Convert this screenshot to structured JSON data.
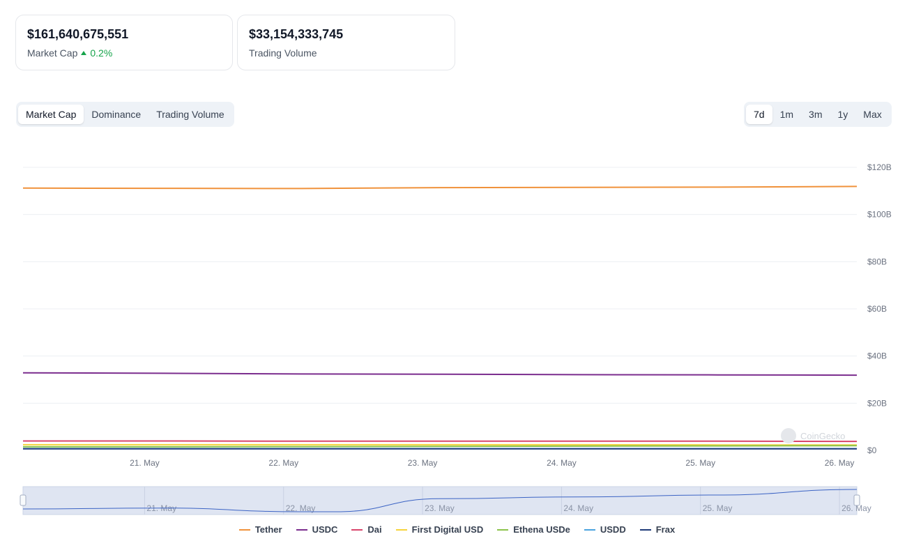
{
  "stats": {
    "market_cap": {
      "value": "$161,640,675,551",
      "label": "Market Cap",
      "change": "0.2%"
    },
    "trading_volume": {
      "value": "$33,154,333,745",
      "label": "Trading Volume"
    }
  },
  "tabs": {
    "metric": [
      {
        "label": "Market Cap",
        "active": true
      },
      {
        "label": "Dominance",
        "active": false
      },
      {
        "label": "Trading Volume",
        "active": false
      }
    ],
    "range": [
      {
        "label": "7d",
        "active": true
      },
      {
        "label": "1m",
        "active": false
      },
      {
        "label": "3m",
        "active": false
      },
      {
        "label": "1y",
        "active": false
      },
      {
        "label": "Max",
        "active": false
      }
    ]
  },
  "watermark": "CoinGecko",
  "colors": {
    "positive": "#16a34a",
    "grid": "#e5e7eb",
    "navigator_fill": "#dbe2f1",
    "navigator_line": "#3b63c4"
  },
  "chart_data": {
    "type": "line",
    "title": "",
    "xlabel": "",
    "ylabel": "",
    "y_axis_position": "right",
    "grid": true,
    "legend_placement": "bottom",
    "x_range": [
      "2024-05-20T03:00",
      "2024-05-26T03:00"
    ],
    "x_ticks": [
      "21. May",
      "22. May",
      "23. May",
      "24. May",
      "25. May",
      "26. May"
    ],
    "y_ticks": [
      "$0",
      "$20B",
      "$40B",
      "$60B",
      "$80B",
      "$100B",
      "$120B"
    ],
    "ylim": [
      0,
      120
    ],
    "y_unit": "billion USD",
    "series": [
      {
        "name": "Tether",
        "color": "#f0923b",
        "x": [
          "2024-05-20T03:00",
          "2024-05-21T03:00",
          "2024-05-22T03:00",
          "2024-05-23T03:00",
          "2024-05-24T03:00",
          "2024-05-25T03:00",
          "2024-05-26T03:00"
        ],
        "values": [
          111.2,
          111.1,
          111.0,
          111.4,
          111.5,
          111.6,
          111.9
        ]
      },
      {
        "name": "USDC",
        "color": "#7b2d8e",
        "x": [
          "2024-05-20T03:00",
          "2024-05-21T03:00",
          "2024-05-22T03:00",
          "2024-05-23T03:00",
          "2024-05-24T03:00",
          "2024-05-25T03:00",
          "2024-05-26T03:00"
        ],
        "values": [
          32.9,
          32.7,
          32.4,
          32.3,
          32.1,
          32.0,
          31.9
        ]
      },
      {
        "name": "Dai",
        "color": "#d9456b",
        "x": [
          "2024-05-20T03:00",
          "2024-05-21T03:00",
          "2024-05-22T03:00",
          "2024-05-23T03:00",
          "2024-05-24T03:00",
          "2024-05-25T03:00",
          "2024-05-26T03:00"
        ],
        "values": [
          4.0,
          4.0,
          3.9,
          3.9,
          3.9,
          3.9,
          3.8
        ]
      },
      {
        "name": "First Digital USD",
        "color": "#f6d33a",
        "x": [
          "2024-05-20T03:00",
          "2024-05-21T03:00",
          "2024-05-22T03:00",
          "2024-05-23T03:00",
          "2024-05-24T03:00",
          "2024-05-25T03:00",
          "2024-05-26T03:00"
        ],
        "values": [
          2.4,
          2.4,
          2.4,
          2.4,
          2.4,
          2.3,
          2.3
        ]
      },
      {
        "name": "Ethena USDe",
        "color": "#8bc34a",
        "x": [
          "2024-05-20T03:00",
          "2024-05-21T03:00",
          "2024-05-22T03:00",
          "2024-05-23T03:00",
          "2024-05-24T03:00",
          "2024-05-25T03:00",
          "2024-05-26T03:00"
        ],
        "values": [
          1.5,
          1.5,
          1.6,
          1.7,
          1.8,
          1.9,
          2.0
        ]
      },
      {
        "name": "USDD",
        "color": "#4aa3df",
        "x": [
          "2024-05-20T03:00",
          "2024-05-21T03:00",
          "2024-05-22T03:00",
          "2024-05-23T03:00",
          "2024-05-24T03:00",
          "2024-05-25T03:00",
          "2024-05-26T03:00"
        ],
        "values": [
          0.73,
          0.73,
          0.73,
          0.73,
          0.73,
          0.73,
          0.73
        ]
      },
      {
        "name": "Frax",
        "color": "#1e3a78",
        "x": [
          "2024-05-20T03:00",
          "2024-05-21T03:00",
          "2024-05-22T03:00",
          "2024-05-23T03:00",
          "2024-05-24T03:00",
          "2024-05-25T03:00",
          "2024-05-26T03:00"
        ],
        "values": [
          0.65,
          0.65,
          0.65,
          0.65,
          0.65,
          0.65,
          0.65
        ]
      }
    ],
    "navigator": {
      "x": [
        "2024-05-20T03:00",
        "2024-05-21T03:00",
        "2024-05-22T03:00",
        "2024-05-22T09:00",
        "2024-05-23T03:00",
        "2024-05-24T03:00",
        "2024-05-25T03:00",
        "2024-05-26T03:00"
      ],
      "values": [
        159.5,
        159.6,
        159.2,
        159.2,
        160.6,
        160.8,
        161.0,
        161.6
      ]
    }
  }
}
